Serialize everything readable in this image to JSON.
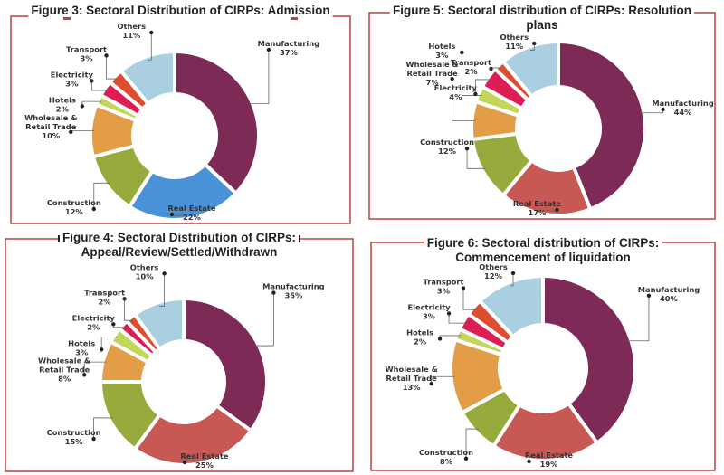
{
  "colors": {
    "frame": "#b8453f",
    "Manufacturing": "#7e2a56",
    "Real Estate": "#c85854",
    "Real Estate (Figure 3)": "#4a92d8",
    "Construction": "#96ab3b",
    "Wholesale & Retail Trade": "#e39d46",
    "Hotels": "#c4d65a",
    "Electricity": "#dc1e55",
    "Transport": "#de4d2f",
    "Others": "#a9cfe0"
  },
  "chart_data": [
    {
      "type": "pie",
      "style": "donut",
      "title_lines": [
        "Figure 3: Sectoral Distribution of CIRPs: Admission"
      ],
      "categories": [
        "Manufacturing",
        "Real Estate",
        "Construction",
        "Wholesale & Retail Trade",
        "Hotels",
        "Electricity",
        "Transport",
        "Others"
      ],
      "values": [
        37,
        22,
        12,
        10,
        2,
        3,
        3,
        11
      ],
      "unit": "%"
    },
    {
      "type": "pie",
      "style": "donut",
      "title_lines": [
        "Figure 5: Sectoral distribution of CIRPs: Resolution",
        "plans"
      ],
      "categories": [
        "Manufacturing",
        "Real Estate",
        "Construction",
        "Wholesale & Retail Trade",
        "Hotels",
        "Electricity",
        "Transport",
        "Others"
      ],
      "values": [
        44,
        17,
        12,
        7,
        3,
        4,
        2,
        11
      ],
      "unit": "%"
    },
    {
      "type": "pie",
      "style": "donut",
      "title_lines": [
        "Figure 4: Sectoral Distribution of CIRPs:",
        "Appeal/Review/Settled/Withdrawn"
      ],
      "categories": [
        "Manufacturing",
        "Real Estate",
        "Construction",
        "Wholesale & Retail Trade",
        "Hotels",
        "Electricity",
        "Transport",
        "Others"
      ],
      "values": [
        35,
        25,
        15,
        8,
        3,
        2,
        2,
        10
      ],
      "unit": "%"
    },
    {
      "type": "pie",
      "style": "donut",
      "title_lines": [
        "Figure 6: Sectoral distribution of CIRPs:",
        "Commencement of liquidation"
      ],
      "categories": [
        "Manufacturing",
        "Real Estate",
        "Construction",
        "Wholesale & Retail Trade",
        "Hotels",
        "Electricity",
        "Transport",
        "Others"
      ],
      "values": [
        40,
        19,
        8,
        13,
        2,
        3,
        3,
        12
      ],
      "unit": "%"
    }
  ]
}
